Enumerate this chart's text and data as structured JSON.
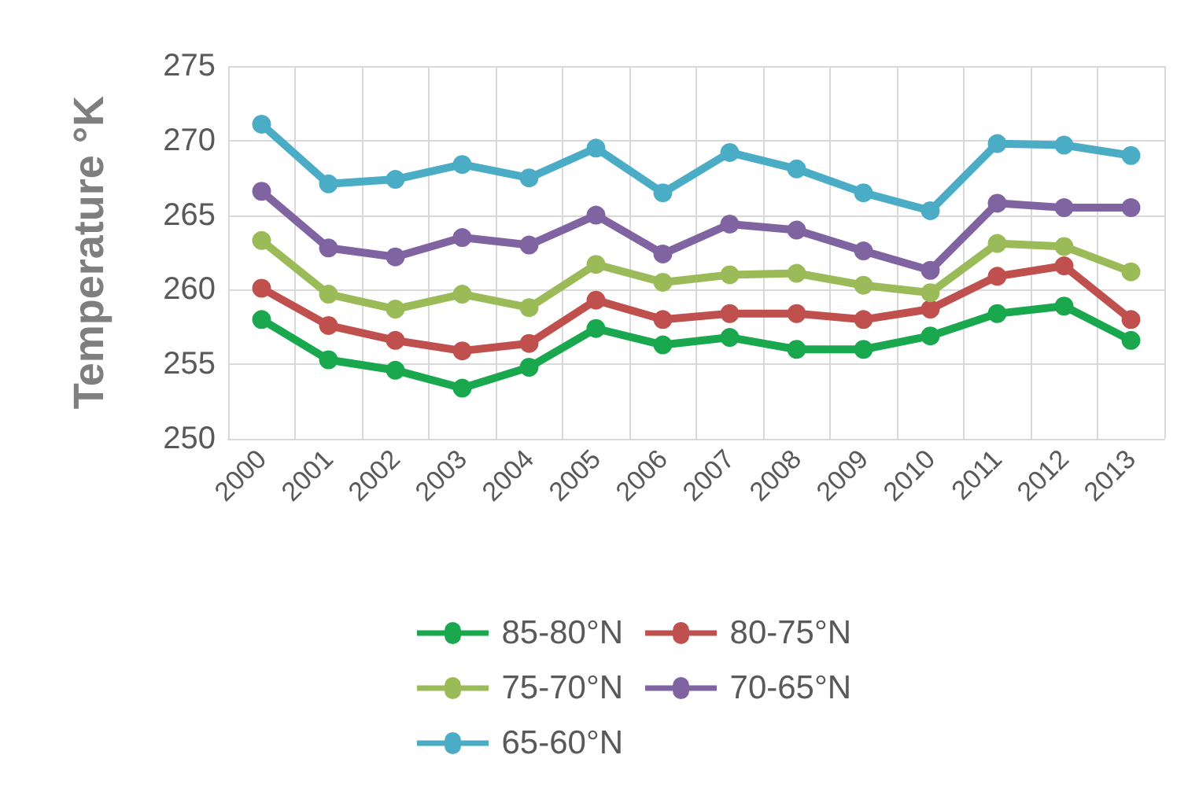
{
  "chart_data": {
    "type": "line",
    "ylabel": "Temperature °K",
    "categories": [
      "2000",
      "2001",
      "2002",
      "2003",
      "2004",
      "2005",
      "2006",
      "2007",
      "2008",
      "2009",
      "2010",
      "2011",
      "2012",
      "2013"
    ],
    "series": [
      {
        "name": "85-80°N",
        "color": "#1aa84f",
        "values": [
          258,
          255.3,
          254.6,
          253.4,
          254.8,
          257.4,
          256.3,
          256.8,
          256,
          256,
          256.9,
          258.4,
          258.9,
          256.6
        ]
      },
      {
        "name": "80-75°N",
        "color": "#c0504d",
        "values": [
          260.1,
          257.6,
          256.6,
          255.9,
          256.4,
          259.3,
          258,
          258.4,
          258.4,
          258,
          258.7,
          260.9,
          261.6,
          258
        ]
      },
      {
        "name": "75-70°N",
        "color": "#9bbb59",
        "values": [
          263.3,
          259.7,
          258.7,
          259.7,
          258.8,
          261.7,
          260.5,
          261,
          261.1,
          260.3,
          259.8,
          263.1,
          262.9,
          261.2
        ]
      },
      {
        "name": "70-65°N",
        "color": "#8064a2",
        "values": [
          266.6,
          262.8,
          262.2,
          263.5,
          263,
          265,
          262.4,
          264.4,
          264,
          262.6,
          261.3,
          265.8,
          265.5,
          265.5
        ]
      },
      {
        "name": "65-60°N",
        "color": "#4bacc6",
        "values": [
          271.1,
          267.1,
          267.4,
          268.4,
          267.5,
          269.5,
          266.5,
          269.2,
          268.1,
          266.5,
          265.3,
          269.8,
          269.7,
          269
        ]
      }
    ],
    "ylim": [
      250,
      275
    ],
    "yticks": [
      250,
      255,
      260,
      265,
      270,
      275
    ],
    "grid": true,
    "legend": "bottom",
    "marker": "circle",
    "line_style": "solid"
  }
}
